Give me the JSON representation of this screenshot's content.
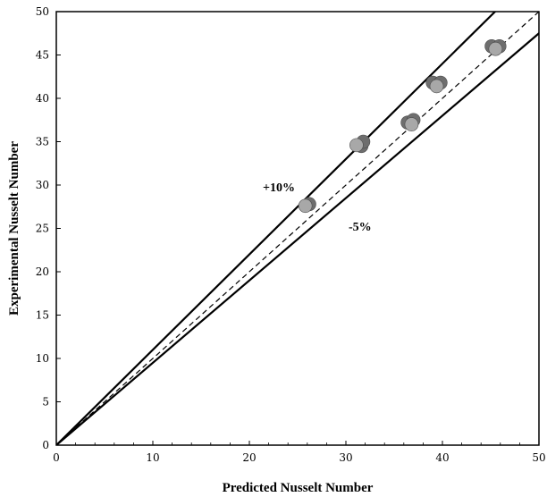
{
  "chart_data": {
    "type": "scatter",
    "xlabel": "Predicted  Nusselt  Number",
    "ylabel": "Experimental Nusselt Number",
    "xlim": [
      0,
      50
    ],
    "ylim": [
      0,
      50
    ],
    "xticks": [
      0,
      10,
      20,
      30,
      40,
      50
    ],
    "yticks": [
      0,
      5,
      10,
      15,
      20,
      25,
      30,
      35,
      40,
      45,
      50
    ],
    "grid": false,
    "lines": [
      {
        "label": "+10%",
        "slope": 1.1,
        "style": "solid"
      },
      {
        "label": "",
        "slope": 1.0,
        "style": "dashed"
      },
      {
        "label": "-5%",
        "slope": 0.95,
        "style": "solid"
      }
    ],
    "series": [
      {
        "color": "#6e6e6e",
        "points": [
          [
            26.2,
            27.8
          ],
          [
            31.6,
            34.5
          ],
          [
            31.8,
            35.0
          ],
          [
            36.4,
            37.2
          ],
          [
            37.0,
            37.5
          ],
          [
            39.0,
            41.8
          ],
          [
            39.8,
            41.8
          ],
          [
            45.1,
            46.0
          ],
          [
            45.9,
            46.0
          ]
        ]
      },
      {
        "color": "#a8a8a8",
        "points": [
          [
            25.8,
            27.6
          ],
          [
            31.1,
            34.6
          ],
          [
            36.8,
            37.0
          ],
          [
            39.4,
            41.4
          ],
          [
            45.5,
            45.7
          ]
        ]
      }
    ]
  }
}
